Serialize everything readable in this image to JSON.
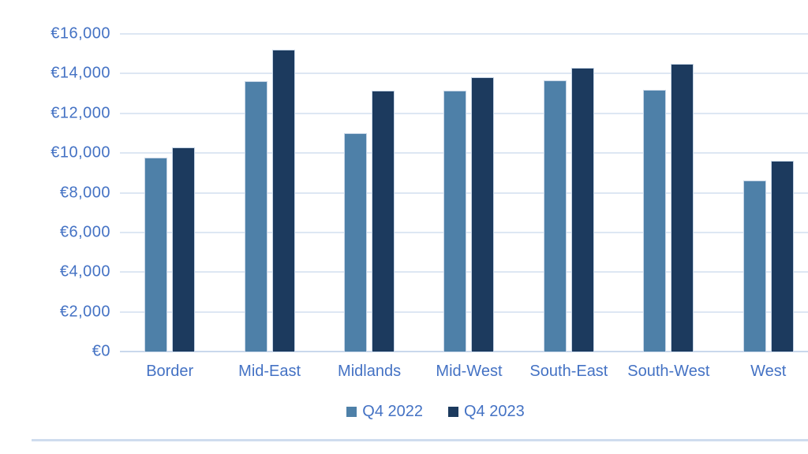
{
  "chart_data": {
    "type": "bar",
    "title": "",
    "xlabel": "",
    "ylabel": "",
    "categories": [
      "Border",
      "Mid-East",
      "Midlands",
      "Mid-West",
      "South-East",
      "South-West",
      "West"
    ],
    "series": [
      {
        "name": "Q4 2022",
        "color": "#4e80a8",
        "values": [
          9750,
          13600,
          11000,
          13150,
          13650,
          13200,
          8600
        ]
      },
      {
        "name": "Q4 2023",
        "color": "#1c3a5e",
        "values": [
          10300,
          15200,
          13150,
          13800,
          14300,
          14500,
          9600
        ]
      }
    ],
    "ylim": [
      0,
      16000
    ],
    "ytick_step": 2000,
    "ytick_labels": [
      "€0",
      "€2,000",
      "€4,000",
      "€6,000",
      "€8,000",
      "€10,000",
      "€12,000",
      "€14,000",
      "€16,000"
    ],
    "currency": "€",
    "grid": "horizontal",
    "legend_position": "bottom"
  },
  "style": {
    "axis_text_color": "#4472c4",
    "gridline_color": "#dde7f3",
    "baseline_color": "#c9d8ec",
    "bar_border_color": "#c6d5e6",
    "bottom_edge_color": "#cfdcee",
    "background": "#ffffff"
  },
  "legend": {
    "items": [
      {
        "label": "Q4 2022"
      },
      {
        "label": "Q4 2023"
      }
    ]
  }
}
